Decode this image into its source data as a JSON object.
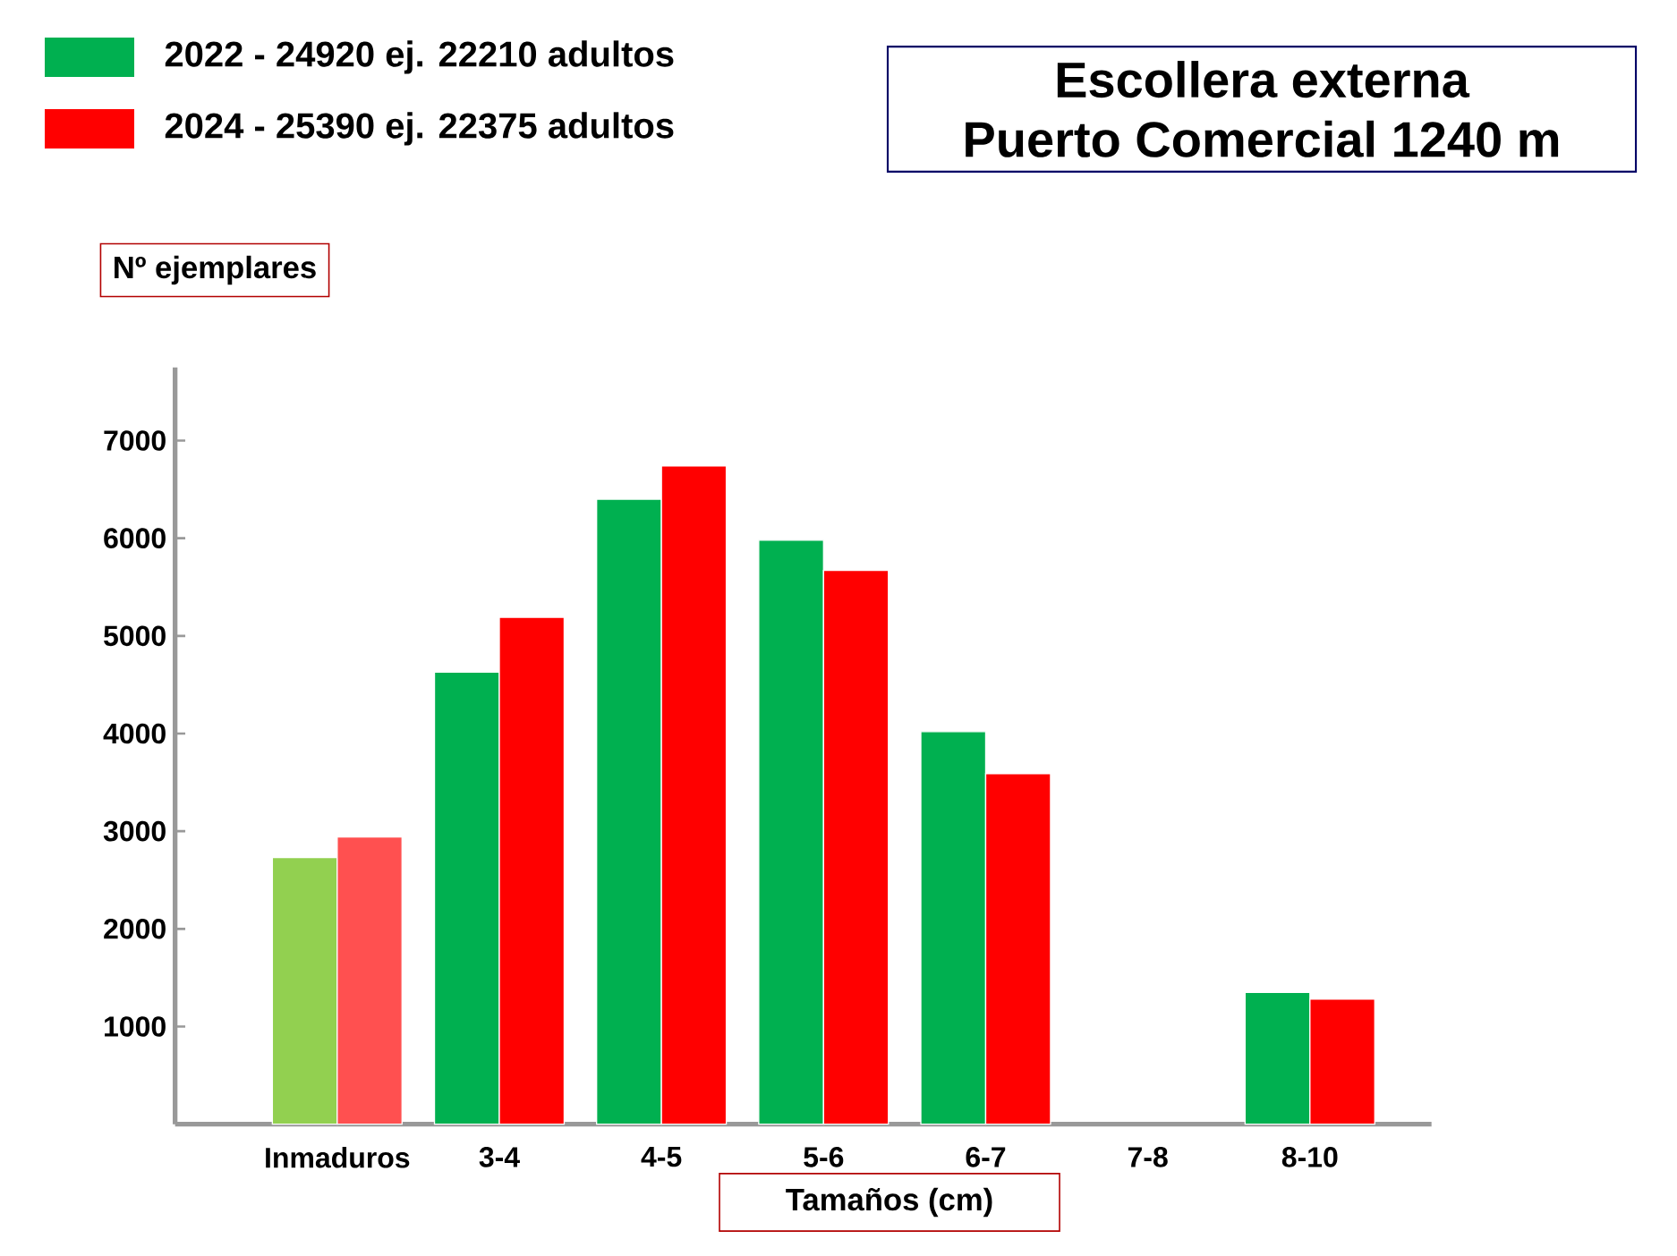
{
  "chart_data": {
    "type": "bar",
    "title": "Escollera externa",
    "subtitle": "Puerto Comercial 1240 m",
    "ylabel": "Nº ejemplares",
    "xlabel": "Tamaños (cm)",
    "categories": [
      "Inmaduros",
      "3-4",
      "4-5",
      "5-6",
      "6-7",
      "7-8",
      "8-10"
    ],
    "series": [
      {
        "name": "2022 - 24920 ej. 22210 adultos",
        "color": "#00b050",
        "colors": [
          "#92d050",
          "#00b050",
          "#00b050",
          "#00b050",
          "#00b050",
          "#00b050",
          "#00b050"
        ],
        "values": [
          2730,
          4630,
          6400,
          5980,
          4020,
          null,
          1350
        ]
      },
      {
        "name": "2024 - 25390 ej. 22375 adultos",
        "color": "#ff0000",
        "colors": [
          "#ff5050",
          "#ff0000",
          "#ff0000",
          "#ff0000",
          "#ff0000",
          "#ff0000",
          "#ff0000"
        ],
        "values": [
          2940,
          5190,
          6740,
          5670,
          3590,
          null,
          1280
        ]
      }
    ],
    "ylim": [
      0,
      7750
    ],
    "yticks": [
      1000,
      2000,
      3000,
      4000,
      5000,
      6000,
      7000
    ],
    "grid": false,
    "legend": "top left"
  }
}
